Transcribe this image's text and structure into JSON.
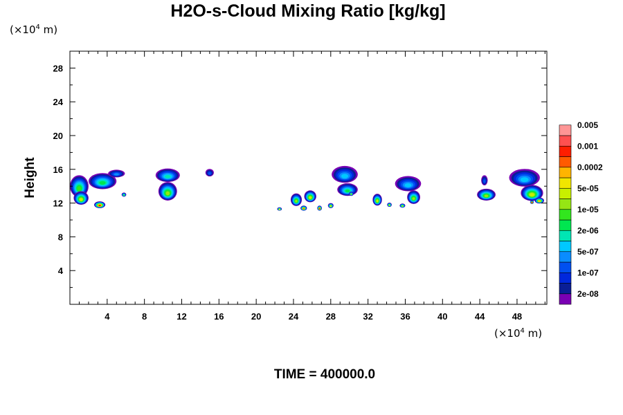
{
  "chart_data": {
    "type": "heatmap",
    "title": "H2O-s-Cloud Mixing Ratio [kg/kg]",
    "ylabel": "Height",
    "x_unit": {
      "prefix": "(×10",
      "exp": "4",
      "suffix": " m)"
    },
    "y_unit": {
      "prefix": "(×10",
      "exp": "4",
      "suffix": " m)"
    },
    "time_label": "TIME = 400000.0",
    "xlim": [
      0,
      51.2
    ],
    "ylim": [
      0,
      30
    ],
    "x_ticks": [
      4,
      8,
      12,
      16,
      20,
      24,
      28,
      32,
      36,
      40,
      44,
      48
    ],
    "y_ticks": [
      4,
      8,
      12,
      16,
      20,
      24,
      28
    ],
    "colorbar": {
      "colors": [
        "#7a00b4",
        "#0a1e96",
        "#0028dc",
        "#0050f0",
        "#0a8cff",
        "#00c8ff",
        "#00e6b4",
        "#00e650",
        "#32e61e",
        "#96e614",
        "#c8f000",
        "#f0e600",
        "#ffb400",
        "#ff5a00",
        "#ff1e00",
        "#ff5050",
        "#ff9696"
      ],
      "labels": [
        "2e-08",
        "1e-07",
        "5e-07",
        "2e-06",
        "1e-05",
        "5e-05",
        "0.0002",
        "0.001",
        "0.005"
      ],
      "label_levels": [
        1,
        3,
        5,
        7,
        9,
        11,
        13,
        15,
        17
      ]
    },
    "clouds": [
      {
        "x": 1.0,
        "y": 14.0,
        "w": 2.0,
        "h": 2.6,
        "level": 9
      },
      {
        "x": 3.5,
        "y": 14.6,
        "w": 3.0,
        "h": 1.9,
        "level": 8
      },
      {
        "x": 5.0,
        "y": 15.5,
        "w": 1.8,
        "h": 0.9,
        "level": 5
      },
      {
        "x": 1.2,
        "y": 12.6,
        "w": 1.6,
        "h": 1.6,
        "level": 11
      },
      {
        "x": 3.2,
        "y": 11.8,
        "w": 1.2,
        "h": 0.8,
        "level": 15
      },
      {
        "x": 5.8,
        "y": 13.0,
        "w": 0.5,
        "h": 0.5,
        "level": 9
      },
      {
        "x": 10.5,
        "y": 15.3,
        "w": 2.6,
        "h": 1.6,
        "level": 7
      },
      {
        "x": 10.5,
        "y": 13.4,
        "w": 2.0,
        "h": 2.2,
        "level": 10
      },
      {
        "x": 15.0,
        "y": 15.6,
        "w": 0.9,
        "h": 0.9,
        "level": 4
      },
      {
        "x": 22.5,
        "y": 11.3,
        "w": 0.5,
        "h": 0.4,
        "level": 12
      },
      {
        "x": 24.3,
        "y": 12.4,
        "w": 1.2,
        "h": 1.5,
        "level": 10
      },
      {
        "x": 25.8,
        "y": 12.8,
        "w": 1.3,
        "h": 1.4,
        "level": 11
      },
      {
        "x": 25.1,
        "y": 11.4,
        "w": 0.7,
        "h": 0.6,
        "level": 14
      },
      {
        "x": 26.8,
        "y": 11.4,
        "w": 0.5,
        "h": 0.6,
        "level": 15
      },
      {
        "x": 28.0,
        "y": 11.7,
        "w": 0.6,
        "h": 0.6,
        "level": 12
      },
      {
        "x": 29.5,
        "y": 15.4,
        "w": 2.8,
        "h": 2.0,
        "level": 6
      },
      {
        "x": 29.8,
        "y": 13.6,
        "w": 2.2,
        "h": 1.5,
        "level": 8
      },
      {
        "x": 30.2,
        "y": 13.1,
        "w": 0.5,
        "h": 0.5,
        "level": 10
      },
      {
        "x": 33.0,
        "y": 12.4,
        "w": 1.0,
        "h": 1.4,
        "level": 11
      },
      {
        "x": 34.3,
        "y": 11.8,
        "w": 0.5,
        "h": 0.5,
        "level": 11
      },
      {
        "x": 36.3,
        "y": 14.3,
        "w": 2.8,
        "h": 1.8,
        "level": 6
      },
      {
        "x": 36.9,
        "y": 12.7,
        "w": 1.4,
        "h": 1.6,
        "level": 10
      },
      {
        "x": 35.7,
        "y": 11.7,
        "w": 0.6,
        "h": 0.5,
        "level": 11
      },
      {
        "x": 44.7,
        "y": 13.0,
        "w": 2.0,
        "h": 1.4,
        "level": 10
      },
      {
        "x": 44.5,
        "y": 14.7,
        "w": 0.7,
        "h": 1.2,
        "level": 4
      },
      {
        "x": 48.8,
        "y": 15.0,
        "w": 3.3,
        "h": 2.1,
        "level": 6
      },
      {
        "x": 49.6,
        "y": 13.2,
        "w": 2.4,
        "h": 1.9,
        "level": 11
      },
      {
        "x": 50.4,
        "y": 12.3,
        "w": 1.0,
        "h": 0.7,
        "level": 13
      },
      {
        "x": 49.6,
        "y": 12.1,
        "w": 0.4,
        "h": 0.4,
        "level": 15
      }
    ]
  }
}
